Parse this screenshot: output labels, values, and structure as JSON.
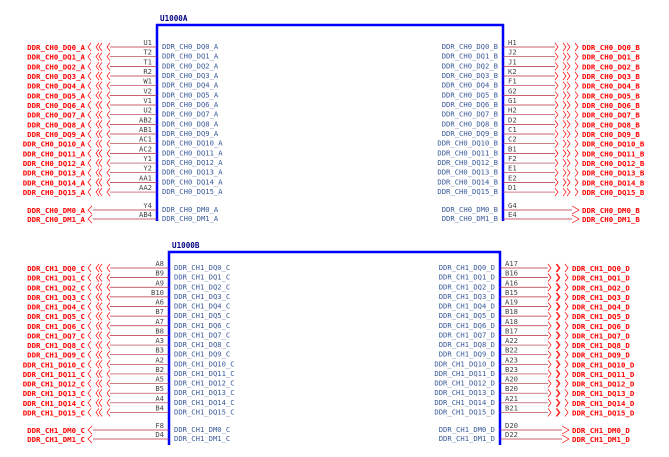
{
  "colors": {
    "box": "#0000ff",
    "net_label": "#ff0000",
    "pin_line": "#b03040",
    "pin_name": "#3a5a9a"
  },
  "parts": [
    {
      "ref": "U1000A",
      "left": {
        "pins": [
          "U1",
          "T2",
          "T1",
          "R2",
          "W1",
          "V2",
          "V1",
          "U2",
          "AB2",
          "AB1",
          "AC1",
          "AC2",
          "Y1",
          "Y2",
          "AA1",
          "AA2"
        ],
        "names": [
          "DDR_CH0_DQ0_A",
          "DDR_CH0_DQ1_A",
          "DDR_CH0_DQ2_A",
          "DDR_CH0_DQ3_A",
          "DDR_CH0_DQ4_A",
          "DDR_CH0_DQ5_A",
          "DDR_CH0_DQ6_A",
          "DDR_CH0_DQ7_A",
          "DDR_CH0_DQ8_A",
          "DDR_CH0_DQ9_A",
          "DDR_CH0_DQ10_A",
          "DDR_CH0_DQ11_A",
          "DDR_CH0_DQ12_A",
          "DDR_CH0_DQ13_A",
          "DDR_CH0_DQ14_A",
          "DDR_CH0_DQ15_A"
        ],
        "dm_pins": [
          "Y4",
          "AB4"
        ],
        "dm_names": [
          "DDR_CH0_DM0_A",
          "DDR_CH0_DM1_A"
        ]
      },
      "right": {
        "pins": [
          "H1",
          "J2",
          "J1",
          "K2",
          "F1",
          "G2",
          "G1",
          "H2",
          "D2",
          "C1",
          "C2",
          "B1",
          "F2",
          "E1",
          "E2",
          "D1"
        ],
        "names": [
          "DDR_CH0_DQ0_B",
          "DDR_CH0_DQ1_B",
          "DDR_CH0_DQ2_B",
          "DDR_CH0_DQ3_B",
          "DDR_CH0_DQ4_B",
          "DDR_CH0_DQ5_B",
          "DDR_CH0_DQ6_B",
          "DDR_CH0_DQ7_B",
          "DDR_CH0_DQ8_B",
          "DDR_CH0_DQ9_B",
          "DDR_CH0_DQ10_B",
          "DDR_CH0_DQ11_B",
          "DDR_CH0_DQ12_B",
          "DDR_CH0_DQ13_B",
          "DDR_CH0_DQ14_B",
          "DDR_CH0_DQ15_B"
        ],
        "dm_pins": [
          "G4",
          "E4"
        ],
        "dm_names": [
          "DDR_CH0_DM0_B",
          "DDR_CH0_DM1_B"
        ]
      }
    },
    {
      "ref": "U1000B",
      "left": {
        "pins": [
          "A8",
          "B9",
          "A9",
          "B10",
          "A6",
          "B7",
          "A7",
          "B8",
          "A3",
          "B3",
          "A2",
          "B2",
          "A5",
          "B5",
          "A4",
          "B4"
        ],
        "names": [
          "DDR_CH1_DQ0_C",
          "DDR_CH1_DQ1_C",
          "DDR_CH1_DQ2_C",
          "DDR_CH1_DQ3_C",
          "DDR_CH1_DQ4_C",
          "DDR_CH1_DQ5_C",
          "DDR_CH1_DQ6_C",
          "DDR_CH1_DQ7_C",
          "DDR_CH1_DQ8_C",
          "DDR_CH1_DQ9_C",
          "DDR_CH1_DQ10_C",
          "DDR_CH1_DQ11_C",
          "DDR_CH1_DQ12_C",
          "DDR_CH1_DQ13_C",
          "DDR_CH1_DQ14_C",
          "DDR_CH1_DQ15_C"
        ],
        "dm_pins": [
          "F8",
          "D4"
        ],
        "dm_names": [
          "DDR_CH1_DM0_C",
          "DDR_CH1_DM1_C"
        ]
      },
      "right": {
        "pins": [
          "A17",
          "B16",
          "A16",
          "B15",
          "A19",
          "B18",
          "A18",
          "B17",
          "A22",
          "B22",
          "A23",
          "B23",
          "A20",
          "B20",
          "A21",
          "B21"
        ],
        "names": [
          "DDR_CH1_DQ0_D",
          "DDR_CH1_DQ1_D",
          "DDR_CH1_DQ2_D",
          "DDR_CH1_DQ3_D",
          "DDR_CH1_DQ4_D",
          "DDR_CH1_DQ5_D",
          "DDR_CH1_DQ6_D",
          "DDR_CH1_DQ7_D",
          "DDR_CH1_DQ8_D",
          "DDR_CH1_DQ9_D",
          "DDR_CH1_DQ10_D",
          "DDR_CH1_DQ11_D",
          "DDR_CH1_DQ12_D",
          "DDR_CH1_DQ13_D",
          "DDR_CH1_DQ14_D",
          "DDR_CH1_DQ15_D"
        ],
        "dm_pins": [
          "D20",
          "D22"
        ],
        "dm_names": [
          "DDR_CH1_DM0_D",
          "DDR_CH1_DM1_D"
        ]
      }
    }
  ]
}
